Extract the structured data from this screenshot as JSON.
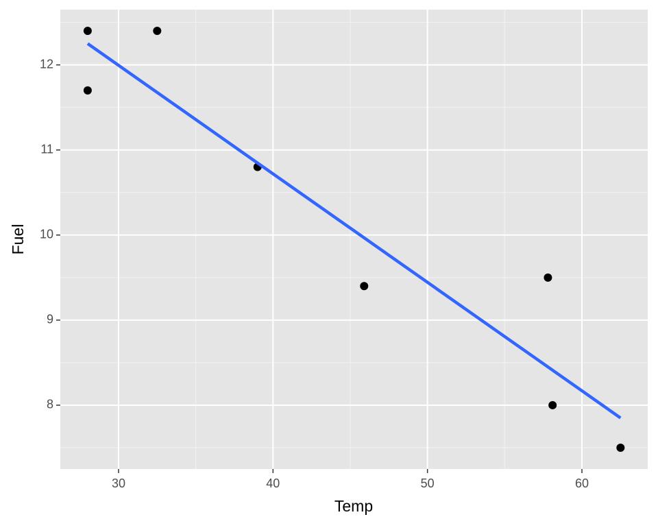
{
  "chart_data": {
    "type": "scatter",
    "x_label": "Temp",
    "y_label": "Fuel",
    "xlim": [
      26.23,
      64.26
    ],
    "xticks": [
      30,
      40,
      50,
      60
    ],
    "ylim": [
      7.25,
      12.65
    ],
    "yticks": [
      8,
      9,
      10,
      11,
      12
    ],
    "grid": true,
    "background": "#e5e5e5",
    "series": [
      {
        "type": "scatter",
        "color": "#000000",
        "x": [
          28,
          28,
          32.5,
          39,
          45.9,
          57.8,
          58.1,
          62.5
        ],
        "values": [
          12.4,
          11.7,
          12.4,
          10.8,
          9.4,
          9.5,
          8.0,
          7.5
        ]
      },
      {
        "type": "line",
        "color": "#3366ff",
        "x": [
          28,
          62.5
        ],
        "values": [
          12.25,
          7.85
        ]
      }
    ]
  }
}
